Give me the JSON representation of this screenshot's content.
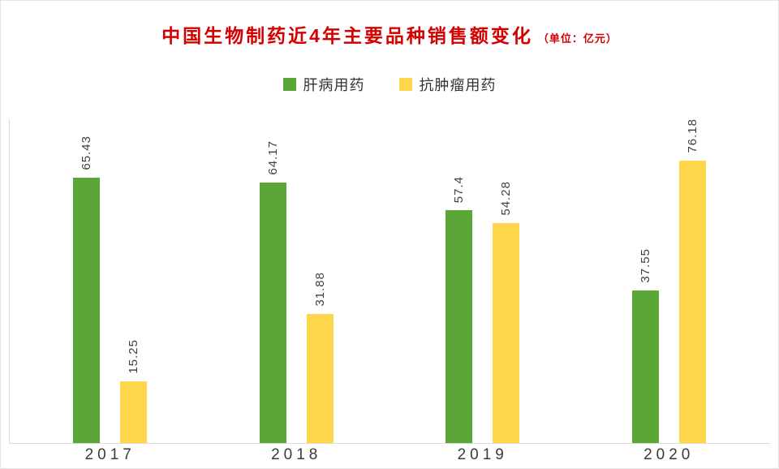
{
  "title": {
    "main": "中国生物制药近4年主要品种销售额变化",
    "unit": "（单位：亿元）",
    "color": "#d40000"
  },
  "chart_data": {
    "type": "bar",
    "categories": [
      "2017",
      "2018",
      "2019",
      "2020"
    ],
    "series": [
      {
        "name": "肝病用药",
        "color": "#5aa738",
        "values": [
          65.43,
          64.17,
          57.4,
          37.55
        ]
      },
      {
        "name": "抗肿瘤用药",
        "color": "#fdd64b",
        "values": [
          15.25,
          31.88,
          54.28,
          76.18
        ]
      }
    ],
    "ylim": [
      0,
      80
    ],
    "grid": "off",
    "legend_position": "top-center",
    "value_labels": "rotated-90"
  }
}
